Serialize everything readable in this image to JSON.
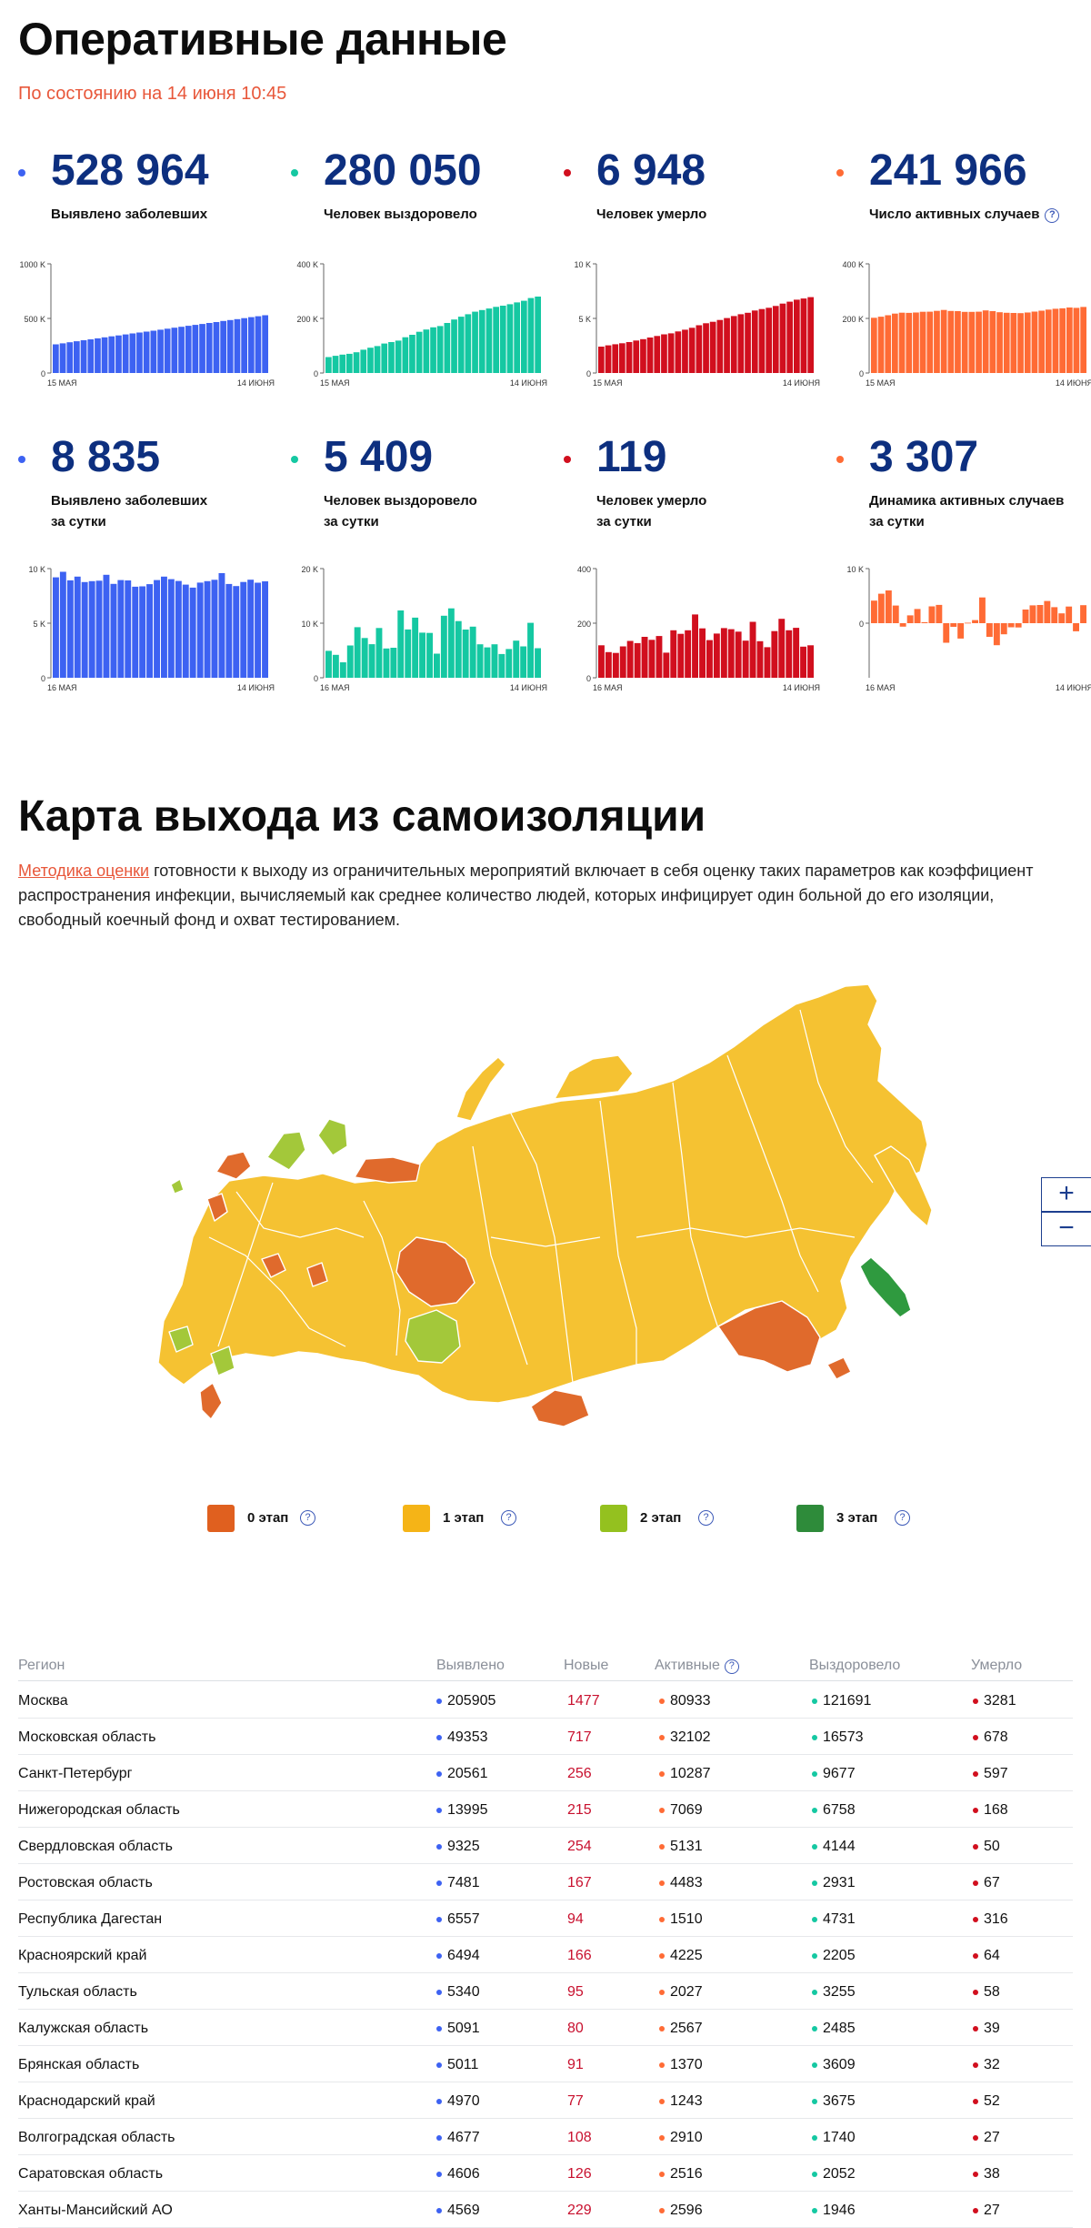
{
  "header": {
    "title": "Оперативные данные",
    "as_of": "По состоянию на 14 июня 10:45"
  },
  "colors": {
    "cases": "#3d62f2",
    "recovered": "#15c8a2",
    "deaths": "#d10f1e",
    "active": "#ff6b35",
    "title_num": "#0d2f7f"
  },
  "stats": [
    {
      "value": "528 964",
      "label": [
        "Выявлено заболевших"
      ],
      "color": "#3d62f2"
    },
    {
      "value": "280 050",
      "label": [
        "Человек выздоровело"
      ],
      "color": "#15c8a2"
    },
    {
      "value": "6 948",
      "label": [
        "Человек умерло"
      ],
      "color": "#d10f1e"
    },
    {
      "value": "241 966",
      "label": [
        "Число активных случаев"
      ],
      "color": "#ff6b35",
      "help": "?"
    },
    {
      "value": "8 835",
      "label": [
        "Выявлено заболевших",
        "за сутки"
      ],
      "color": "#3d62f2"
    },
    {
      "value": "5 409",
      "label": [
        "Человек выздоровело",
        "за сутки"
      ],
      "color": "#15c8a2"
    },
    {
      "value": "119",
      "label": [
        "Человек умерло",
        "за сутки"
      ],
      "color": "#d10f1e"
    },
    {
      "value": "3 307",
      "label": [
        "Динамика активных случаев",
        "за сутки"
      ],
      "color": "#ff6b35"
    }
  ],
  "chart_data": [
    {
      "type": "bar",
      "series_name": "Выявлено заболевших",
      "color": "#3d62f2",
      "x_start": "15 МАЯ",
      "x_end": "14 ИЮНЯ",
      "y_ticks": [
        {
          "v": 0,
          "label": "0"
        },
        {
          "v": 500000,
          "label": "500 K"
        },
        {
          "v": 1000000,
          "label": "1000 K"
        }
      ],
      "ylim": [
        0,
        1000000
      ],
      "values": [
        262843,
        272043,
        281752,
        290678,
        299941,
        308705,
        317554,
        326448,
        335882,
        344481,
        353427,
        362342,
        370680,
        379051,
        387623,
        396575,
        405843,
        414878,
        423741,
        432277,
        440538,
        449256,
        458102,
        467073,
        476658,
        485253,
        493657,
        502436,
        511423,
        520129,
        528964
      ]
    },
    {
      "type": "bar",
      "series_name": "Человек выздоровело",
      "color": "#15c8a2",
      "x_start": "15 МАЯ",
      "x_end": "14 ИЮНЯ",
      "y_ticks": [
        {
          "v": 0,
          "label": "0"
        },
        {
          "v": 200000,
          "label": "200 K"
        },
        {
          "v": 400000,
          "label": "400 K"
        }
      ],
      "ylim": [
        0,
        400000
      ],
      "values": [
        58226,
        63166,
        67373,
        70209,
        76130,
        85392,
        92681,
        98825,
        107936,
        113299,
        118798,
        131129,
        139979,
        150993,
        159257,
        167469,
        171883,
        183248,
        195957,
        206340,
        215180,
        224551,
        230688,
        236260,
        242397,
        246747,
        252008,
        258811,
        264569,
        274641,
        280050
      ]
    },
    {
      "type": "bar",
      "series_name": "Человек умерло",
      "color": "#d10f1e",
      "x_start": "15 МАЯ",
      "x_end": "14 ИЮНЯ",
      "y_ticks": [
        {
          "v": 0,
          "label": "0"
        },
        {
          "v": 5000,
          "label": "5 K"
        },
        {
          "v": 10000,
          "label": "10 K"
        }
      ],
      "ylim": [
        0,
        10000
      ],
      "values": [
        2418,
        2537,
        2631,
        2722,
        2837,
        2972,
        3099,
        3249,
        3388,
        3541,
        3633,
        3807,
        3968,
        4142,
        4374,
        4555,
        4693,
        4855,
        5037,
        5215,
        5384,
        5520,
        5725,
        5859,
        5971,
        6142,
        6358,
        6532,
        6715,
        6829,
        6948
      ]
    },
    {
      "type": "bar",
      "series_name": "Число активных случаев",
      "color": "#ff6b35",
      "x_start": "15 МАЯ",
      "x_end": "14 ИЮНЯ",
      "y_ticks": [
        {
          "v": 0,
          "label": "0"
        },
        {
          "v": 200000,
          "label": "200 K"
        },
        {
          "v": 400000,
          "label": "400 K"
        }
      ],
      "ylim": [
        0,
        400000
      ],
      "values": [
        202199,
        206340,
        211748,
        217747,
        220974,
        220341,
        221774,
        224374,
        224558,
        227641,
        230996,
        227406,
        226733,
        223916,
        223992,
        224551,
        229267,
        226775,
        222747,
        220722,
        219974,
        219185,
        221689,
        224954,
        228290,
        232364,
        235291,
        237093,
        240139,
        238659,
        241966
      ]
    },
    {
      "type": "bar",
      "series_name": "Выявлено заболевших за сутки",
      "color": "#3d62f2",
      "x_start": "16 МАЯ",
      "x_end": "14 ИЮНЯ",
      "y_ticks": [
        {
          "v": 0,
          "label": "0"
        },
        {
          "v": 5000,
          "label": "5 K"
        },
        {
          "v": 10000,
          "label": "10 K"
        }
      ],
      "ylim": [
        0,
        10000
      ],
      "values": [
        9200,
        9709,
        8926,
        9263,
        8764,
        8849,
        8894,
        9434,
        8599,
        8946,
        8915,
        8338,
        8371,
        8572,
        8952,
        9268,
        9035,
        8863,
        8536,
        8261,
        8718,
        8846,
        8971,
        9585,
        8595,
        8404,
        8779,
        8987,
        8706,
        8835
      ]
    },
    {
      "type": "bar",
      "series_name": "Человек выздоровело за сутки",
      "color": "#15c8a2",
      "x_start": "16 МАЯ",
      "x_end": "14 ИЮНЯ",
      "y_ticks": [
        {
          "v": 0,
          "label": "0"
        },
        {
          "v": 10000,
          "label": "10 K"
        },
        {
          "v": 20000,
          "label": "20 K"
        }
      ],
      "ylim": [
        0,
        20000
      ],
      "values": [
        4940,
        4207,
        2836,
        5921,
        9262,
        7289,
        6144,
        9111,
        5363,
        5499,
        12331,
        8850,
        11014,
        8264,
        8212,
        4414,
        11365,
        12709,
        10383,
        8840,
        9371,
        6137,
        5572,
        6137,
        4350,
        5261,
        6803,
        5758,
        10072,
        5409
      ]
    },
    {
      "type": "bar",
      "series_name": "Человек умерло за сутки",
      "color": "#d10f1e",
      "x_start": "16 МАЯ",
      "x_end": "14 ИЮНЯ",
      "y_ticks": [
        {
          "v": 0,
          "label": "0"
        },
        {
          "v": 200,
          "label": "200"
        },
        {
          "v": 400,
          "label": "400"
        }
      ],
      "ylim": [
        0,
        400
      ],
      "values": [
        119,
        94,
        91,
        115,
        135,
        127,
        150,
        139,
        153,
        92,
        174,
        161,
        174,
        232,
        181,
        138,
        162,
        182,
        178,
        169,
        136,
        205,
        134,
        112,
        171,
        216,
        174,
        183,
        114,
        119
      ]
    },
    {
      "type": "bar",
      "series_name": "Динамика активных случаев за сутки",
      "color": "#ff6b35",
      "x_start": "16 МАЯ",
      "x_end": "14 ИЮНЯ",
      "y_ticks": [
        {
          "v": 0,
          "label": "0"
        },
        {
          "v": 10000,
          "label": "10 K"
        }
      ],
      "ylim": [
        -10000,
        10000
      ],
      "values": [
        4141,
        5408,
        5999,
        3227,
        -633,
        1433,
        2600,
        184,
        3083,
        3355,
        -3590,
        -673,
        -2817,
        76,
        559,
        4716,
        -2492,
        -4028,
        -2025,
        -748,
        -789,
        2504,
        3265,
        3336,
        4074,
        2927,
        1802,
        3046,
        -1480,
        3307
      ]
    }
  ],
  "section2": {
    "title": "Карта выхода из самоизоляции",
    "desc_link": "Методика оценки",
    "desc_rest": " готовности к выходу из ограничительных мероприятий включает в себя оценку таких параметров как коэффициент распространения инфекции, вычисляемый как среднее количество людей, которых инфицирует один больной до его изоляции, свободный коечный фонд и охват тестированием."
  },
  "map": {
    "zoom_in": "+",
    "zoom_out": "−",
    "stage_colors": {
      "0": "#e06a2c",
      "1": "#f5c232",
      "2": "#a3c83a",
      "3": "#2f9a3f"
    }
  },
  "legend": [
    {
      "label": "0 этап",
      "color": "#e0601f",
      "help": "?"
    },
    {
      "label": "1 этап",
      "color": "#f5b417",
      "help": "?"
    },
    {
      "label": "2 этап",
      "color": "#94c11f",
      "help": "?"
    },
    {
      "label": "3 этап",
      "color": "#2e8b3a",
      "help": "?"
    }
  ],
  "table": {
    "headers": {
      "region": "Регион",
      "cases": "Выявлено",
      "new": "Новые",
      "active": "Активные",
      "active_help": "?",
      "recovered": "Выздоровело",
      "deaths": "Умерло"
    },
    "rows": [
      {
        "region": "Москва",
        "cases": "205905",
        "new": "1477",
        "active": "80933",
        "recovered": "121691",
        "deaths": "3281"
      },
      {
        "region": "Московская область",
        "cases": "49353",
        "new": "717",
        "active": "32102",
        "recovered": "16573",
        "deaths": "678"
      },
      {
        "region": "Санкт-Петербург",
        "cases": "20561",
        "new": "256",
        "active": "10287",
        "recovered": "9677",
        "deaths": "597"
      },
      {
        "region": "Нижегородская область",
        "cases": "13995",
        "new": "215",
        "active": "7069",
        "recovered": "6758",
        "deaths": "168"
      },
      {
        "region": "Свердловская область",
        "cases": "9325",
        "new": "254",
        "active": "5131",
        "recovered": "4144",
        "deaths": "50"
      },
      {
        "region": "Ростовская область",
        "cases": "7481",
        "new": "167",
        "active": "4483",
        "recovered": "2931",
        "deaths": "67"
      },
      {
        "region": "Республика Дагестан",
        "cases": "6557",
        "new": "94",
        "active": "1510",
        "recovered": "4731",
        "deaths": "316"
      },
      {
        "region": "Красноярский край",
        "cases": "6494",
        "new": "166",
        "active": "4225",
        "recovered": "2205",
        "deaths": "64"
      },
      {
        "region": "Тульская область",
        "cases": "5340",
        "new": "95",
        "active": "2027",
        "recovered": "3255",
        "deaths": "58"
      },
      {
        "region": "Калужская область",
        "cases": "5091",
        "new": "80",
        "active": "2567",
        "recovered": "2485",
        "deaths": "39"
      },
      {
        "region": "Брянская область",
        "cases": "5011",
        "new": "91",
        "active": "1370",
        "recovered": "3609",
        "deaths": "32"
      },
      {
        "region": "Краснодарский край",
        "cases": "4970",
        "new": "77",
        "active": "1243",
        "recovered": "3675",
        "deaths": "52"
      },
      {
        "region": "Волгоградская область",
        "cases": "4677",
        "new": "108",
        "active": "2910",
        "recovered": "1740",
        "deaths": "27"
      },
      {
        "region": "Саратовская область",
        "cases": "4606",
        "new": "126",
        "active": "2516",
        "recovered": "2052",
        "deaths": "38"
      },
      {
        "region": "Ханты-Мансийский АО",
        "cases": "4569",
        "new": "229",
        "active": "2596",
        "recovered": "1946",
        "deaths": "27"
      }
    ]
  }
}
